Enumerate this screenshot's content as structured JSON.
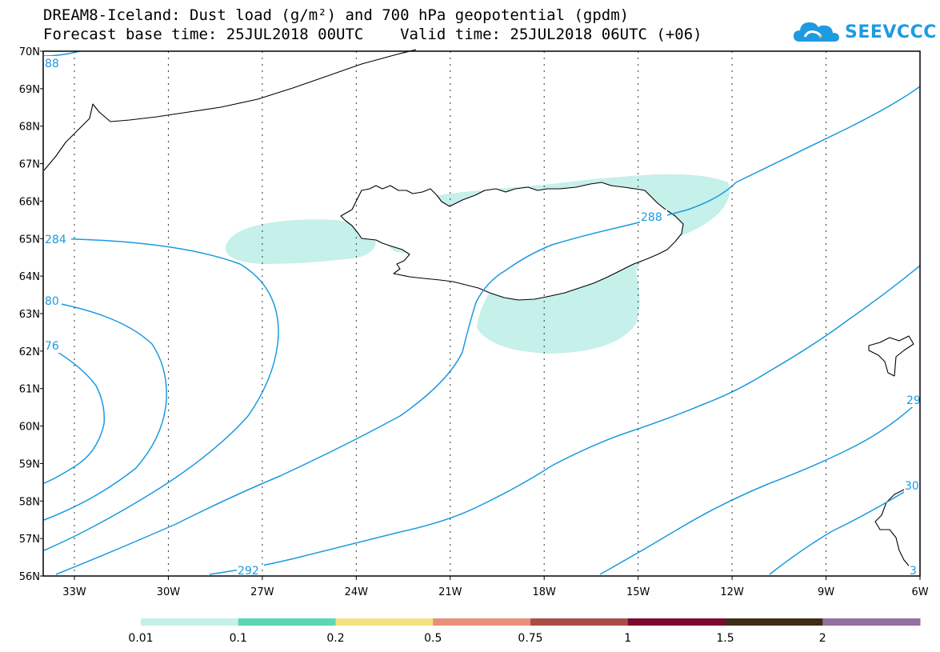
{
  "header": {
    "title_line1": "DREAM8-Iceland: Dust load (g/m²) and 700 hPa geopotential (gpdm)",
    "title_line2": "Forecast base time: 25JUL2018 00UTC    Valid time: 25JUL2018 06UTC (+06)"
  },
  "logo": {
    "text": "SEEVCCC",
    "icon": "cloud-icon",
    "color": "#1e9be0"
  },
  "map": {
    "lat_labels": [
      "70N",
      "69N",
      "68N",
      "67N",
      "66N",
      "65N",
      "64N",
      "63N",
      "62N",
      "61N",
      "60N",
      "59N",
      "58N",
      "57N",
      "56N"
    ],
    "lon_labels": [
      "33W",
      "30W",
      "27W",
      "24W",
      "21W",
      "18W",
      "15W",
      "12W",
      "9W",
      "6W"
    ],
    "contour_color": "#1a9ae0",
    "contour_labels": [
      "88",
      "284",
      "80",
      "76",
      "288",
      "292",
      "29",
      "30",
      "3"
    ],
    "dust_color": "#c6f0ea"
  },
  "colorbar": {
    "labels": [
      "0.01",
      "0.1",
      "0.2",
      "0.5",
      "0.75",
      "1",
      "1.5",
      "2"
    ],
    "colors": [
      "#c6f0ea",
      "#58d9b4",
      "#f2e27e",
      "#e8907a",
      "#a84e48",
      "#7c0a2e",
      "#3e2c14",
      "#9470a0"
    ]
  }
}
